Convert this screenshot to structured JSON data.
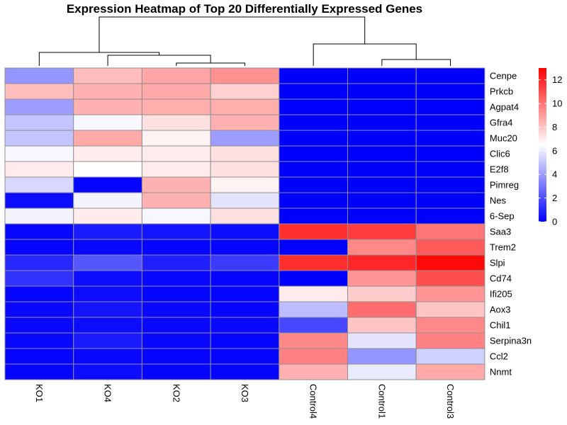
{
  "chart_data": {
    "type": "heatmap",
    "title": "Expression Heatmap of Top 20 Differentially Expressed Genes",
    "columns": [
      "KO1",
      "KO4",
      "KO2",
      "KO3",
      "Control4",
      "Control1",
      "Control3"
    ],
    "rows": [
      "Cenpe",
      "Prkcb",
      "Agpat4",
      "Gfra4",
      "Muc20",
      "Clic6",
      "E2f8",
      "Pimreg",
      "Nes",
      "6-Sep",
      "Saa3",
      "Trem2",
      "Slpi",
      "Cd74",
      "Ifi205",
      "Aox3",
      "Chil1",
      "Serpina3n",
      "Ccl2",
      "Nnmt"
    ],
    "values": [
      [
        3.8,
        8.2,
        8.8,
        9.3,
        0,
        0,
        0
      ],
      [
        8.2,
        8.5,
        8.7,
        7.7,
        0,
        0,
        0
      ],
      [
        4.0,
        8.5,
        8.6,
        8.6,
        0,
        0,
        0
      ],
      [
        5.0,
        6.3,
        7.3,
        8.5,
        0,
        0,
        0
      ],
      [
        5.0,
        8.7,
        6.8,
        4.0,
        0,
        0,
        0
      ],
      [
        6.3,
        7.0,
        7.0,
        7.3,
        0,
        0,
        0
      ],
      [
        7.0,
        6.5,
        7.0,
        7.3,
        0,
        0,
        0
      ],
      [
        5.5,
        0.1,
        8.5,
        6.8,
        0,
        0,
        0
      ],
      [
        0.3,
        6.2,
        8.5,
        5.8,
        0,
        0,
        0
      ],
      [
        6.2,
        7.0,
        6.3,
        7.3,
        0,
        0,
        0
      ],
      [
        0.2,
        0.7,
        0.5,
        0.3,
        11.8,
        11.5,
        10.0
      ],
      [
        0.1,
        0.2,
        0.1,
        0.1,
        0.0,
        9.5,
        10.7
      ],
      [
        1.0,
        2.2,
        0.8,
        1.5,
        11.8,
        12.0,
        12.8
      ],
      [
        1.3,
        0.3,
        0.2,
        0.1,
        0.0,
        9.2,
        11.0
      ],
      [
        0.1,
        0.3,
        0.1,
        0.1,
        7.0,
        7.8,
        9.2
      ],
      [
        0.2,
        0.5,
        0.2,
        0.1,
        4.8,
        10.2,
        8.0
      ],
      [
        0.2,
        0.3,
        0.2,
        0.2,
        1.8,
        8.0,
        9.5
      ],
      [
        0.2,
        0.7,
        0.2,
        0.1,
        9.5,
        5.8,
        9.7
      ],
      [
        0.1,
        0.2,
        0.1,
        0.1,
        9.7,
        3.8,
        5.3
      ],
      [
        0.1,
        0.3,
        0.1,
        0.1,
        8.5,
        6.0,
        8.7
      ]
    ],
    "colorscale": {
      "min": 0,
      "max": 13,
      "low_color": "#0000ff",
      "mid_color": "#ffffff",
      "high_color": "#ff0000",
      "midpoint": 6.5,
      "ticks": [
        0,
        2,
        4,
        6,
        8,
        10,
        12
      ]
    },
    "column_dendrogram": true,
    "legend_position": "right"
  }
}
